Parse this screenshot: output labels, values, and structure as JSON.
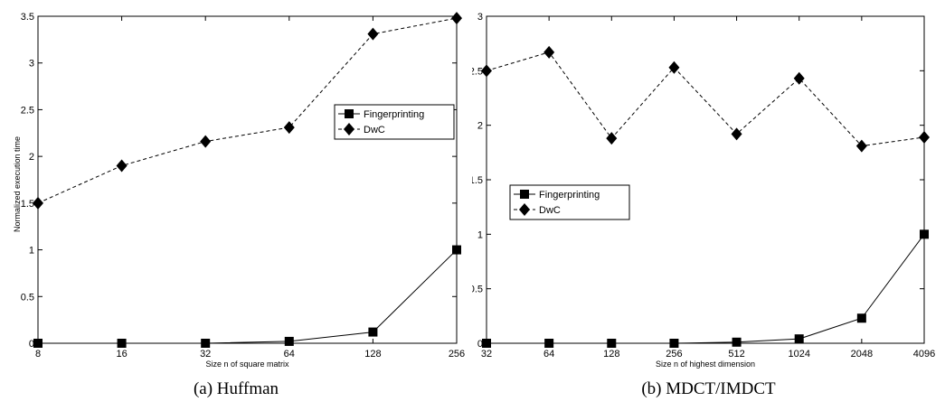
{
  "chart_data": [
    {
      "type": "line",
      "caption": "(a)  Huffman",
      "xlabel": "Size n of square matrix",
      "ylabel": "Normalized execution time",
      "categories": [
        "8",
        "16",
        "32",
        "64",
        "128",
        "256"
      ],
      "ylim": [
        0,
        3.5
      ],
      "yticks": [
        "0",
        "0.5",
        "1",
        "1.5",
        "2",
        "2.5",
        "3",
        "3.5"
      ],
      "legend_position": "center-right",
      "grid": false,
      "series": [
        {
          "name": "Fingerprinting",
          "marker": "square",
          "style": "solid",
          "values": [
            0,
            0,
            0,
            0.02,
            0.12,
            1.0
          ]
        },
        {
          "name": "DwC",
          "marker": "diamond",
          "style": "dashed",
          "values": [
            1.5,
            1.9,
            2.16,
            2.31,
            3.31,
            3.48
          ]
        }
      ]
    },
    {
      "type": "line",
      "caption": "(b)  MDCT/IMDCT",
      "xlabel": "Size n of highest dimension",
      "ylabel": "Normalized execution time",
      "categories": [
        "32",
        "64",
        "128",
        "256",
        "512",
        "1024",
        "2048",
        "4096"
      ],
      "ylim": [
        0,
        3
      ],
      "yticks": [
        "0",
        "0.5",
        "1",
        "1.5",
        "2",
        "2.5",
        "3"
      ],
      "legend_position": "center-left",
      "grid": false,
      "series": [
        {
          "name": "Fingerprinting",
          "marker": "square",
          "style": "solid",
          "values": [
            0,
            0,
            0,
            0,
            0.01,
            0.04,
            0.23,
            1.0
          ]
        },
        {
          "name": "DwC",
          "marker": "diamond",
          "style": "dashed",
          "values": [
            2.5,
            2.67,
            1.88,
            2.53,
            1.92,
            2.43,
            1.81,
            1.89
          ]
        }
      ]
    }
  ]
}
